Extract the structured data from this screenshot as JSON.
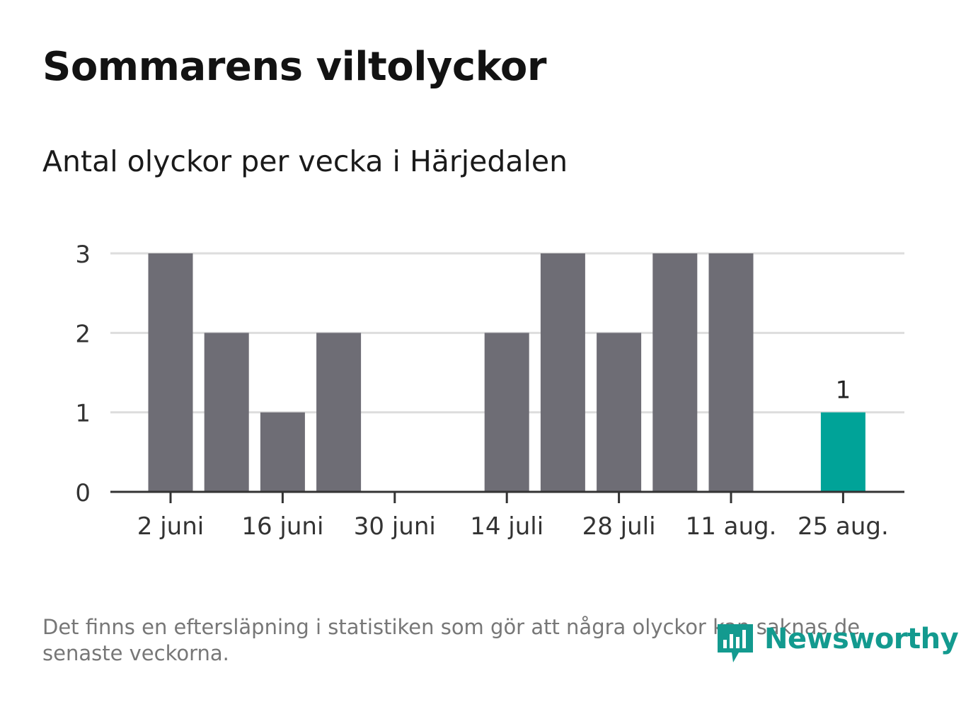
{
  "title": "Sommarens viltolyckor",
  "subtitle": "Antal olyckor per vecka i Härjedalen",
  "note": "Det finns en eftersläpning i statistiken som gör att några olyckor kan saknas de senaste veckorna.",
  "logo": {
    "name": "Newsworthy",
    "icon": "newsworthy-logo-icon",
    "color": "#139a8f"
  },
  "chart_data": {
    "type": "bar",
    "x": [
      "2024-06-02",
      "2024-06-09",
      "2024-06-16",
      "2024-06-23",
      "2024-06-30",
      "2024-07-07",
      "2024-07-14",
      "2024-07-21",
      "2024-07-28",
      "2024-08-04",
      "2024-08-11",
      "2024-08-18",
      "2024-08-25"
    ],
    "values": [
      3,
      2,
      1,
      2,
      0,
      0,
      2,
      3,
      2,
      3,
      3,
      0,
      1
    ],
    "x_tick_labels": [
      "2 juni",
      "16 juni",
      "30 juni",
      "14 juli",
      "28 juli",
      "11 aug.",
      "25 aug."
    ],
    "x_tick_index": [
      0,
      2,
      4,
      6,
      8,
      10,
      12
    ],
    "y_ticks": [
      0,
      1,
      2,
      3
    ],
    "ylim": [
      0,
      3
    ],
    "highlight": {
      "index": 12,
      "label": "1",
      "color": "#00a398"
    },
    "bar_color": "#6e6d75",
    "grid_color": "#dddddd",
    "grid": true
  }
}
